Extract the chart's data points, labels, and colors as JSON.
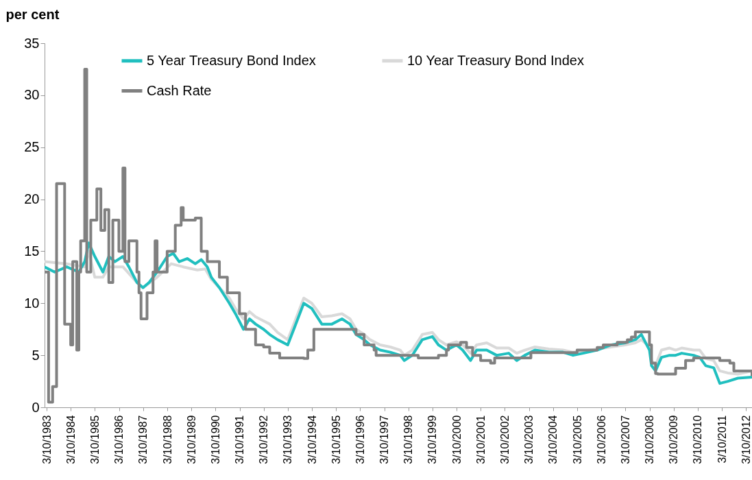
{
  "chart_data": {
    "type": "line",
    "ylabel": "per cent",
    "legend": "top",
    "grid": false,
    "marker": "none",
    "xlim": [
      "1983-09",
      "2013-01"
    ],
    "xticks": [
      {
        "value": "1983-10-03",
        "label": "3/10/1983"
      },
      {
        "value": "1984-10-03",
        "label": "3/10/1984"
      },
      {
        "value": "1985-10-03",
        "label": "3/10/1985"
      },
      {
        "value": "1986-10-03",
        "label": "3/10/1986"
      },
      {
        "value": "1987-10-03",
        "label": "3/10/1987"
      },
      {
        "value": "1988-10-03",
        "label": "3/10/1988"
      },
      {
        "value": "1989-10-03",
        "label": "3/10/1989"
      },
      {
        "value": "1990-10-03",
        "label": "3/10/1990"
      },
      {
        "value": "1991-10-03",
        "label": "3/10/1991"
      },
      {
        "value": "1992-10-03",
        "label": "3/10/1992"
      },
      {
        "value": "1993-10-03",
        "label": "3/10/1993"
      },
      {
        "value": "1994-10-03",
        "label": "3/10/1994"
      },
      {
        "value": "1995-10-03",
        "label": "3/10/1995"
      },
      {
        "value": "1996-10-03",
        "label": "3/10/1996"
      },
      {
        "value": "1997-10-03",
        "label": "3/10/1997"
      },
      {
        "value": "1998-10-03",
        "label": "3/10/1998"
      },
      {
        "value": "1999-10-03",
        "label": "3/10/1999"
      },
      {
        "value": "2000-10-03",
        "label": "3/10/2000"
      },
      {
        "value": "2001-10-03",
        "label": "3/10/2001"
      },
      {
        "value": "2002-10-03",
        "label": "3/10/2002"
      },
      {
        "value": "2003-10-03",
        "label": "3/10/2003"
      },
      {
        "value": "2004-10-03",
        "label": "3/10/2004"
      },
      {
        "value": "2005-10-03",
        "label": "3/10/2005"
      },
      {
        "value": "2006-10-03",
        "label": "3/10/2006"
      },
      {
        "value": "2007-10-03",
        "label": "3/10/2007"
      },
      {
        "value": "2008-10-03",
        "label": "3/10/2008"
      },
      {
        "value": "2009-10-03",
        "label": "3/10/2009"
      },
      {
        "value": "2010-10-03",
        "label": "3/10/2010"
      },
      {
        "value": "2011-10-03",
        "label": "3/10/2011"
      },
      {
        "value": "2012-10-03",
        "label": "3/10/2012"
      }
    ],
    "ylim": [
      0,
      35
    ],
    "yticks": [
      0,
      5,
      10,
      15,
      20,
      25,
      30,
      35
    ],
    "series": [
      {
        "name": "5 Year Treasury Bond Index",
        "color": "#20bfbf",
        "x": [
          "1983-09",
          "1984-02",
          "1984-08",
          "1985-02",
          "1985-05",
          "1985-07",
          "1985-10",
          "1986-02",
          "1986-05",
          "1986-08",
          "1986-12",
          "1987-03",
          "1987-07",
          "1987-10",
          "1988-01",
          "1988-05",
          "1988-10",
          "1989-01",
          "1989-04",
          "1989-08",
          "1989-12",
          "1990-03",
          "1990-06",
          "1990-08",
          "1990-12",
          "1991-05",
          "1991-08",
          "1991-12",
          "1992-03",
          "1992-06",
          "1992-10",
          "1993-01",
          "1993-05",
          "1993-10",
          "1994-01",
          "1994-06",
          "1994-10",
          "1995-03",
          "1995-08",
          "1996-01",
          "1996-05",
          "1996-08",
          "1996-12",
          "1997-03",
          "1997-08",
          "1998-01",
          "1998-06",
          "1998-08",
          "1998-12",
          "1999-05",
          "1999-10",
          "2000-01",
          "2000-05",
          "2000-10",
          "2001-01",
          "2001-05",
          "2001-08",
          "2002-01",
          "2002-06",
          "2002-12",
          "2003-04",
          "2003-08",
          "2004-01",
          "2004-08",
          "2005-03",
          "2005-08",
          "2006-01",
          "2006-08",
          "2007-03",
          "2007-10",
          "2008-03",
          "2008-06",
          "2008-10",
          "2008-11",
          "2009-01",
          "2009-04",
          "2009-08",
          "2009-11",
          "2010-02",
          "2010-08",
          "2010-11",
          "2011-02",
          "2011-06",
          "2011-09",
          "2012-01",
          "2012-06",
          "2013-01"
        ],
        "values": [
          13.5,
          13,
          13.5,
          13,
          14,
          15.8,
          14.5,
          13,
          14.5,
          14,
          14.5,
          13.5,
          12,
          11.5,
          12,
          13,
          14.5,
          14.8,
          14,
          14.3,
          13.8,
          14.2,
          13.5,
          12.5,
          11.5,
          10,
          9,
          7.5,
          8.5,
          8,
          7.5,
          7,
          6.5,
          6,
          7.5,
          10,
          9.5,
          8,
          8,
          8.5,
          8,
          7,
          6.5,
          6,
          5.5,
          5.3,
          5,
          4.5,
          5,
          6.5,
          6.8,
          6,
          5.5,
          6,
          5.5,
          4.5,
          5.5,
          5.5,
          5,
          5.2,
          4.5,
          5,
          5.5,
          5.3,
          5.3,
          5,
          5.2,
          5.5,
          6,
          6.2,
          6.5,
          7,
          5.5,
          4,
          3.5,
          4.8,
          5,
          5,
          5.2,
          5,
          4.8,
          4,
          3.8,
          2.3,
          2.5,
          2.8,
          2.9
        ]
      },
      {
        "name": "10 Year Treasury Bond Index",
        "color": "#d9d9d9",
        "x": [
          "1983-09",
          "1984-08",
          "1985-05",
          "1985-07",
          "1985-10",
          "1986-02",
          "1986-05",
          "1986-12",
          "1987-07",
          "1987-10",
          "1988-05",
          "1988-12",
          "1989-06",
          "1990-01",
          "1990-05",
          "1990-08",
          "1990-12",
          "1991-05",
          "1991-08",
          "1991-12",
          "1992-03",
          "1992-06",
          "1992-10",
          "1993-01",
          "1993-05",
          "1993-10",
          "1994-01",
          "1994-06",
          "1994-10",
          "1995-03",
          "1995-08",
          "1996-01",
          "1996-05",
          "1996-08",
          "1996-12",
          "1997-03",
          "1997-08",
          "1998-01",
          "1998-06",
          "1998-08",
          "1998-12",
          "1999-05",
          "1999-10",
          "2000-01",
          "2000-05",
          "2000-10",
          "2001-01",
          "2001-05",
          "2001-08",
          "2002-01",
          "2002-06",
          "2002-12",
          "2003-04",
          "2003-08",
          "2004-01",
          "2004-08",
          "2005-03",
          "2005-08",
          "2006-01",
          "2006-08",
          "2007-03",
          "2007-10",
          "2008-03",
          "2008-06",
          "2008-10",
          "2008-11",
          "2009-01",
          "2009-04",
          "2009-08",
          "2009-11",
          "2010-02",
          "2010-08",
          "2010-11",
          "2011-02",
          "2011-06",
          "2011-09",
          "2012-01",
          "2012-06",
          "2013-01"
        ],
        "values": [
          14,
          13.8,
          13.5,
          15,
          12.5,
          12.5,
          13.5,
          13.5,
          12,
          11.5,
          12.5,
          13.8,
          13.5,
          13.2,
          13.3,
          12.3,
          11.5,
          10.5,
          9.5,
          8.5,
          9.2,
          8.7,
          8.3,
          8,
          7.2,
          6.5,
          8,
          10.5,
          10,
          8.7,
          8.8,
          9,
          8.5,
          7.5,
          7,
          6.5,
          6,
          5.8,
          5.5,
          5,
          5.5,
          7,
          7.2,
          6.5,
          6,
          6.3,
          6,
          5.2,
          6,
          6.2,
          5.7,
          5.7,
          5.2,
          5.5,
          5.8,
          5.6,
          5.5,
          5.3,
          5.4,
          5.6,
          5.8,
          6,
          6.2,
          6.5,
          5.8,
          4.5,
          4,
          5.5,
          5.7,
          5.5,
          5.7,
          5.5,
          5.5,
          4.7,
          4.5,
          3.5,
          3.3,
          3.2,
          3.5
        ]
      },
      {
        "name": "Cash Rate",
        "color": "#808080",
        "type": "step",
        "x": [
          "1983-09",
          "1983-11",
          "1984-01",
          "1984-03",
          "1984-07",
          "1984-10",
          "1984-11",
          "1985-01",
          "1985-02",
          "1985-03",
          "1985-05",
          "1985-06",
          "1985-08",
          "1985-11",
          "1986-01",
          "1986-03",
          "1986-05",
          "1986-07",
          "1986-10",
          "1986-12",
          "1987-01",
          "1987-03",
          "1987-07",
          "1987-08",
          "1987-09",
          "1987-12",
          "1988-03",
          "1988-04",
          "1988-05",
          "1988-10",
          "1989-02",
          "1989-05",
          "1989-06",
          "1989-12",
          "1990-03",
          "1990-06",
          "1990-12",
          "1991-04",
          "1991-10",
          "1992-01",
          "1992-06",
          "1992-10",
          "1993-01",
          "1993-06",
          "1994-06",
          "1994-08",
          "1994-11",
          "1996-01",
          "1996-08",
          "1996-12",
          "1997-05",
          "1997-06",
          "1998-12",
          "1999-03",
          "1999-10",
          "2000-01",
          "2000-05",
          "2000-06",
          "2000-12",
          "2001-03",
          "2001-06",
          "2001-10",
          "2002-03",
          "2002-05",
          "2003-06",
          "2003-11",
          "2005-06",
          "2005-10",
          "2006-06",
          "2006-08",
          "2006-11",
          "2007-06",
          "2007-11",
          "2008-01",
          "2008-03",
          "2008-08",
          "2008-10",
          "2008-11",
          "2009-01",
          "2009-02",
          "2009-08",
          "2009-11",
          "2010-04",
          "2010-08",
          "2011-08",
          "2011-09",
          "2012-02",
          "2012-04",
          "2013-01"
        ],
        "values": [
          13,
          0.5,
          2,
          21.5,
          8,
          6,
          14,
          5.5,
          13,
          16,
          32.5,
          13,
          18,
          21,
          17,
          19,
          12,
          18,
          15,
          23,
          14,
          16,
          13,
          11,
          8.5,
          11,
          13,
          16,
          13,
          15,
          17.5,
          19.2,
          18,
          18.2,
          15,
          14,
          12.5,
          11,
          9,
          7.5,
          6,
          5.8,
          5.2,
          4.75,
          4.7,
          5.5,
          7.5,
          7.5,
          7,
          6,
          5.5,
          5,
          5,
          4.75,
          4.75,
          5,
          5.5,
          6,
          6.25,
          5.75,
          5,
          4.5,
          4.25,
          4.75,
          4.75,
          5.25,
          5.25,
          5.5,
          5.5,
          5.75,
          6,
          6.25,
          6.5,
          6.75,
          7.25,
          7.25,
          6,
          4.25,
          3.25,
          3.2,
          3.2,
          3.75,
          4.5,
          4.75,
          4.75,
          4.5,
          4.25,
          3.5,
          3
        ]
      }
    ]
  }
}
